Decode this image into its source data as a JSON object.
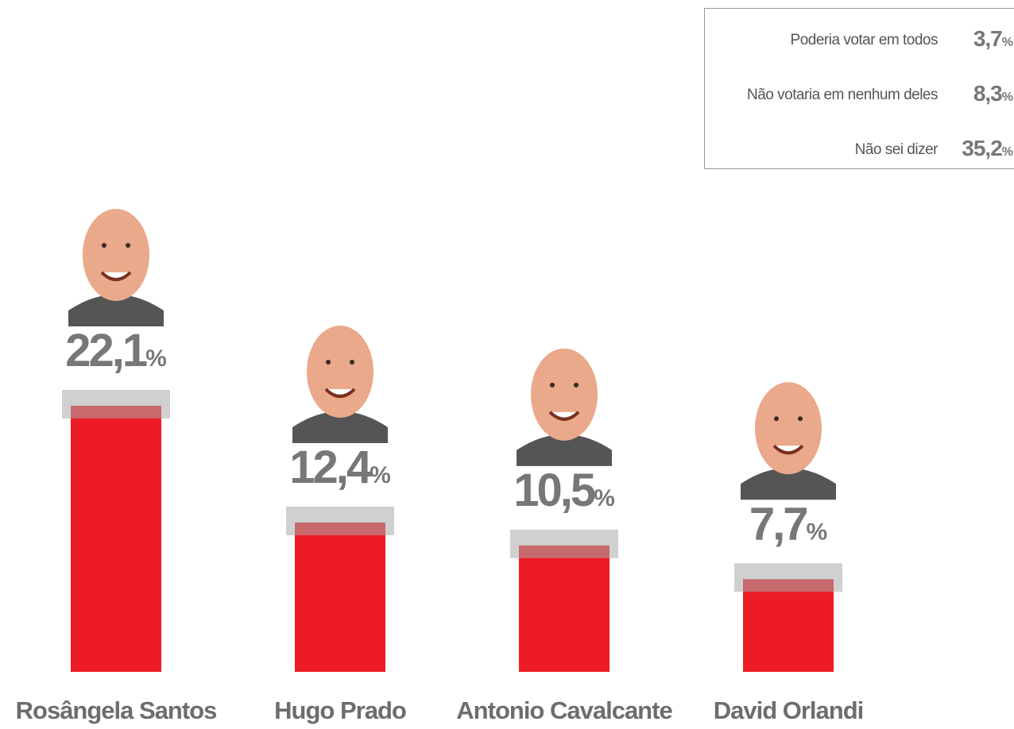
{
  "chart_data": {
    "type": "bar",
    "categories": [
      "Rosângela Santos",
      "Hugo Prado",
      "Antonio Cavalcante",
      "David Orlandi"
    ],
    "values": [
      22.1,
      12.4,
      10.5,
      7.7
    ],
    "value_labels": [
      "22,1%",
      "12,4%",
      "10,5%",
      "7,7%"
    ],
    "color": "#ed1c24",
    "others": [
      {
        "label": "Poderia votar em todos",
        "value": 3.7,
        "value_label": "3,7%"
      },
      {
        "label": "Não votaria em nenhum deles",
        "value": 8.3,
        "value_label": "8,3%"
      },
      {
        "label": "Não sei dizer",
        "value": 35.2,
        "value_label": "35,2%"
      }
    ]
  }
}
